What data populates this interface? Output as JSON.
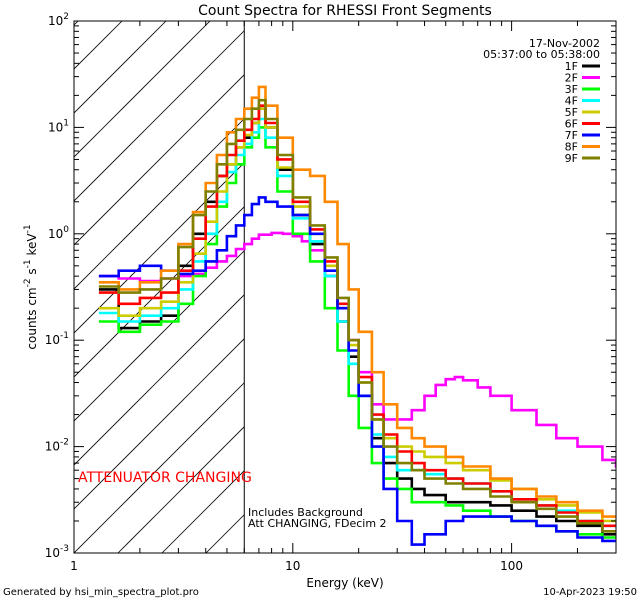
{
  "chart_data": {
    "type": "line",
    "title": "Count Spectra for RHESSI Front Segments",
    "date": "17-Nov-2002",
    "time_range": "05:37:00 to 05:38:00",
    "xlabel": "Energy (keV)",
    "ylabel": "counts cm^-2 s^-1 keV^-1",
    "xscale": "log",
    "yscale": "log",
    "xlim": [
      1,
      300
    ],
    "ylim": [
      0.001,
      100
    ],
    "x_ticks": [
      {
        "value": 1,
        "label": "1"
      },
      {
        "value": 10,
        "label": "10"
      },
      {
        "value": 100,
        "label": "100"
      }
    ],
    "y_ticks": [
      {
        "value": 0.001,
        "base": "10",
        "exp": "-3"
      },
      {
        "value": 0.01,
        "base": "10",
        "exp": "-2"
      },
      {
        "value": 0.1,
        "base": "10",
        "exp": "-1"
      },
      {
        "value": 1,
        "base": "10",
        "exp": "0"
      },
      {
        "value": 10,
        "base": "10",
        "exp": "1"
      },
      {
        "value": 100,
        "base": "10",
        "exp": "2"
      }
    ],
    "attenuator_energy_kev": 6,
    "annotations": {
      "attenuator": "ATTENUATOR CHANGING",
      "background": "Includes Background",
      "att_state": "Att CHANGING, FDecim 2"
    },
    "footer_left": "Generated by hsi_min_spectra_plot.pro",
    "footer_right": "10-Apr-2023 19:50",
    "series": [
      {
        "name": "1F",
        "color": "#000000",
        "x": [
          1.3,
          1.6,
          2.0,
          2.5,
          3.0,
          3.5,
          4.0,
          4.5,
          5.0,
          5.5,
          6.0,
          6.5,
          7.0,
          7.5,
          8.5,
          10,
          12,
          14,
          16,
          18,
          20,
          23,
          26,
          30,
          35,
          40,
          50,
          60,
          80,
          100,
          130,
          160,
          200,
          260
        ],
        "y": [
          0.3,
          0.13,
          0.15,
          0.17,
          0.5,
          1.0,
          2.0,
          3.5,
          4.5,
          6.5,
          8.0,
          11,
          15,
          10,
          4.0,
          1.5,
          0.8,
          0.4,
          0.15,
          0.07,
          0.03,
          0.012,
          0.007,
          0.005,
          0.004,
          0.0035,
          0.003,
          0.003,
          0.0028,
          0.0025,
          0.0022,
          0.002,
          0.0018,
          0.0015
        ]
      },
      {
        "name": "2F",
        "color": "#ff00ff",
        "x": [
          1.3,
          1.6,
          2.0,
          2.5,
          3.0,
          3.5,
          4.0,
          4.5,
          5.0,
          5.5,
          6.0,
          6.5,
          7.0,
          8.0,
          9.0,
          10,
          11,
          12,
          14,
          16,
          18,
          20,
          23,
          26,
          30,
          35,
          40,
          45,
          50,
          55,
          60,
          70,
          80,
          100,
          130,
          160,
          200,
          260,
          300
        ],
        "y": [
          0.4,
          0.38,
          0.36,
          0.38,
          0.4,
          0.42,
          0.48,
          0.55,
          0.62,
          0.72,
          0.8,
          0.9,
          0.98,
          1.02,
          1.0,
          0.95,
          0.85,
          0.7,
          0.4,
          0.2,
          0.1,
          0.05,
          0.025,
          0.018,
          0.018,
          0.022,
          0.03,
          0.038,
          0.043,
          0.045,
          0.042,
          0.036,
          0.03,
          0.022,
          0.016,
          0.012,
          0.01,
          0.0075,
          0.0065
        ]
      },
      {
        "name": "3F",
        "color": "#00ff00",
        "x": [
          1.3,
          1.6,
          2.0,
          2.5,
          3.0,
          3.5,
          4.0,
          4.5,
          5.0,
          5.5,
          6.0,
          6.5,
          7.0,
          7.5,
          8.5,
          10,
          12,
          14,
          16,
          18,
          20,
          23,
          26,
          30,
          35,
          40,
          50,
          60,
          80,
          100,
          130,
          160,
          200,
          260
        ],
        "y": [
          0.15,
          0.12,
          0.14,
          0.15,
          0.22,
          0.4,
          0.8,
          1.8,
          3.0,
          4.5,
          6.5,
          8.0,
          10,
          6.5,
          2.5,
          1.0,
          0.55,
          0.2,
          0.08,
          0.03,
          0.015,
          0.007,
          0.005,
          0.004,
          0.003,
          0.003,
          0.0028,
          0.0025,
          0.0022,
          0.002,
          0.0018,
          0.0016,
          0.0015,
          0.0014
        ]
      },
      {
        "name": "4F",
        "color": "#00ffff",
        "x": [
          1.3,
          1.6,
          2.0,
          2.5,
          3.0,
          3.5,
          4.0,
          4.5,
          5.0,
          5.5,
          6.0,
          6.5,
          7.0,
          7.5,
          8.5,
          10,
          12,
          14,
          16,
          18,
          20,
          23,
          26,
          30,
          35,
          40,
          50,
          60,
          80,
          100,
          130,
          160,
          200,
          260
        ],
        "y": [
          0.18,
          0.15,
          0.17,
          0.2,
          0.3,
          0.55,
          1.0,
          2.0,
          3.8,
          5.5,
          7.0,
          9.0,
          12,
          8.0,
          3.5,
          1.4,
          0.85,
          0.4,
          0.15,
          0.06,
          0.03,
          0.013,
          0.008,
          0.006,
          0.006,
          0.0055,
          0.005,
          0.0045,
          0.0038,
          0.0032,
          0.0028,
          0.0025,
          0.002,
          0.0018
        ]
      },
      {
        "name": "5F",
        "color": "#cccc00",
        "x": [
          1.3,
          1.6,
          2.0,
          2.5,
          3.0,
          3.5,
          4.0,
          4.5,
          5.0,
          5.5,
          6.0,
          6.5,
          7.0,
          7.5,
          8.5,
          10,
          12,
          14,
          16,
          18,
          20,
          23,
          26,
          30,
          35,
          40,
          50,
          60,
          80,
          100,
          130,
          160,
          200,
          260
        ],
        "y": [
          0.2,
          0.17,
          0.2,
          0.23,
          0.35,
          0.65,
          1.3,
          2.5,
          4.5,
          6.5,
          8.5,
          11,
          15,
          10,
          4.2,
          1.8,
          1.0,
          0.5,
          0.2,
          0.09,
          0.04,
          0.018,
          0.012,
          0.01,
          0.009,
          0.008,
          0.007,
          0.006,
          0.0048,
          0.004,
          0.0032,
          0.0028,
          0.0024,
          0.002
        ]
      },
      {
        "name": "6F",
        "color": "#ff0000",
        "x": [
          1.3,
          1.6,
          2.0,
          2.5,
          3.0,
          3.5,
          4.0,
          4.5,
          5.0,
          5.5,
          6.0,
          6.5,
          7.0,
          7.5,
          8.5,
          10,
          12,
          14,
          16,
          18,
          20,
          23,
          26,
          30,
          35,
          40,
          50,
          60,
          80,
          100,
          130,
          160,
          200,
          260
        ],
        "y": [
          0.28,
          0.22,
          0.25,
          0.28,
          0.45,
          0.9,
          1.8,
          3.5,
          5.5,
          7.5,
          9.5,
          12,
          16,
          11,
          5.0,
          2.0,
          1.1,
          0.55,
          0.22,
          0.1,
          0.045,
          0.02,
          0.013,
          0.009,
          0.007,
          0.006,
          0.005,
          0.0045,
          0.0038,
          0.0032,
          0.0028,
          0.0024,
          0.002,
          0.0018
        ]
      },
      {
        "name": "7F",
        "color": "#0000ff",
        "x": [
          1.3,
          1.6,
          2.0,
          2.5,
          3.0,
          3.5,
          4.0,
          4.5,
          5.0,
          5.5,
          6.0,
          6.5,
          7.0,
          7.5,
          8.5,
          10,
          12,
          14,
          16,
          18,
          20,
          23,
          26,
          30,
          35,
          40,
          50,
          60,
          80,
          100,
          130,
          160,
          200,
          260
        ],
        "y": [
          0.4,
          0.45,
          0.5,
          0.45,
          0.42,
          0.45,
          0.55,
          0.7,
          0.95,
          1.2,
          1.5,
          1.9,
          2.2,
          2.0,
          1.8,
          1.5,
          1.0,
          0.45,
          0.2,
          0.08,
          0.03,
          0.01,
          0.004,
          0.002,
          0.0012,
          0.0015,
          0.002,
          0.0022,
          0.0022,
          0.002,
          0.0018,
          0.0016,
          0.0014,
          0.0013
        ]
      },
      {
        "name": "8F",
        "color": "#ff8800",
        "x": [
          1.3,
          1.6,
          2.0,
          2.5,
          3.0,
          3.5,
          4.0,
          4.5,
          5.0,
          5.5,
          6.0,
          6.5,
          7.0,
          7.5,
          8.5,
          10,
          12,
          14,
          16,
          18,
          20,
          23,
          26,
          30,
          35,
          40,
          50,
          60,
          80,
          100,
          130,
          160,
          200,
          260
        ],
        "y": [
          0.35,
          0.3,
          0.35,
          0.45,
          0.8,
          1.6,
          3.0,
          5.5,
          9.0,
          12,
          15,
          19,
          24,
          16,
          8.0,
          4.0,
          3.5,
          2.0,
          0.8,
          0.3,
          0.12,
          0.05,
          0.025,
          0.015,
          0.012,
          0.01,
          0.008,
          0.0065,
          0.005,
          0.004,
          0.0034,
          0.003,
          0.0025,
          0.0022
        ]
      },
      {
        "name": "9F",
        "color": "#808000",
        "x": [
          1.3,
          1.6,
          2.0,
          2.5,
          3.0,
          3.5,
          4.0,
          4.5,
          5.0,
          5.5,
          6.0,
          6.5,
          7.0,
          7.5,
          8.5,
          10,
          12,
          14,
          16,
          18,
          20,
          23,
          26,
          30,
          35,
          40,
          50,
          60,
          80,
          100,
          130,
          160,
          200,
          260
        ],
        "y": [
          0.32,
          0.28,
          0.3,
          0.38,
          0.75,
          1.5,
          2.5,
          4.5,
          7.0,
          9.5,
          12,
          15,
          18,
          12,
          5.5,
          2.2,
          1.2,
          0.6,
          0.25,
          0.1,
          0.04,
          0.018,
          0.01,
          0.007,
          0.006,
          0.005,
          0.0045,
          0.004,
          0.0034,
          0.003,
          0.0026,
          0.0022,
          0.0019,
          0.0016
        ]
      }
    ]
  }
}
